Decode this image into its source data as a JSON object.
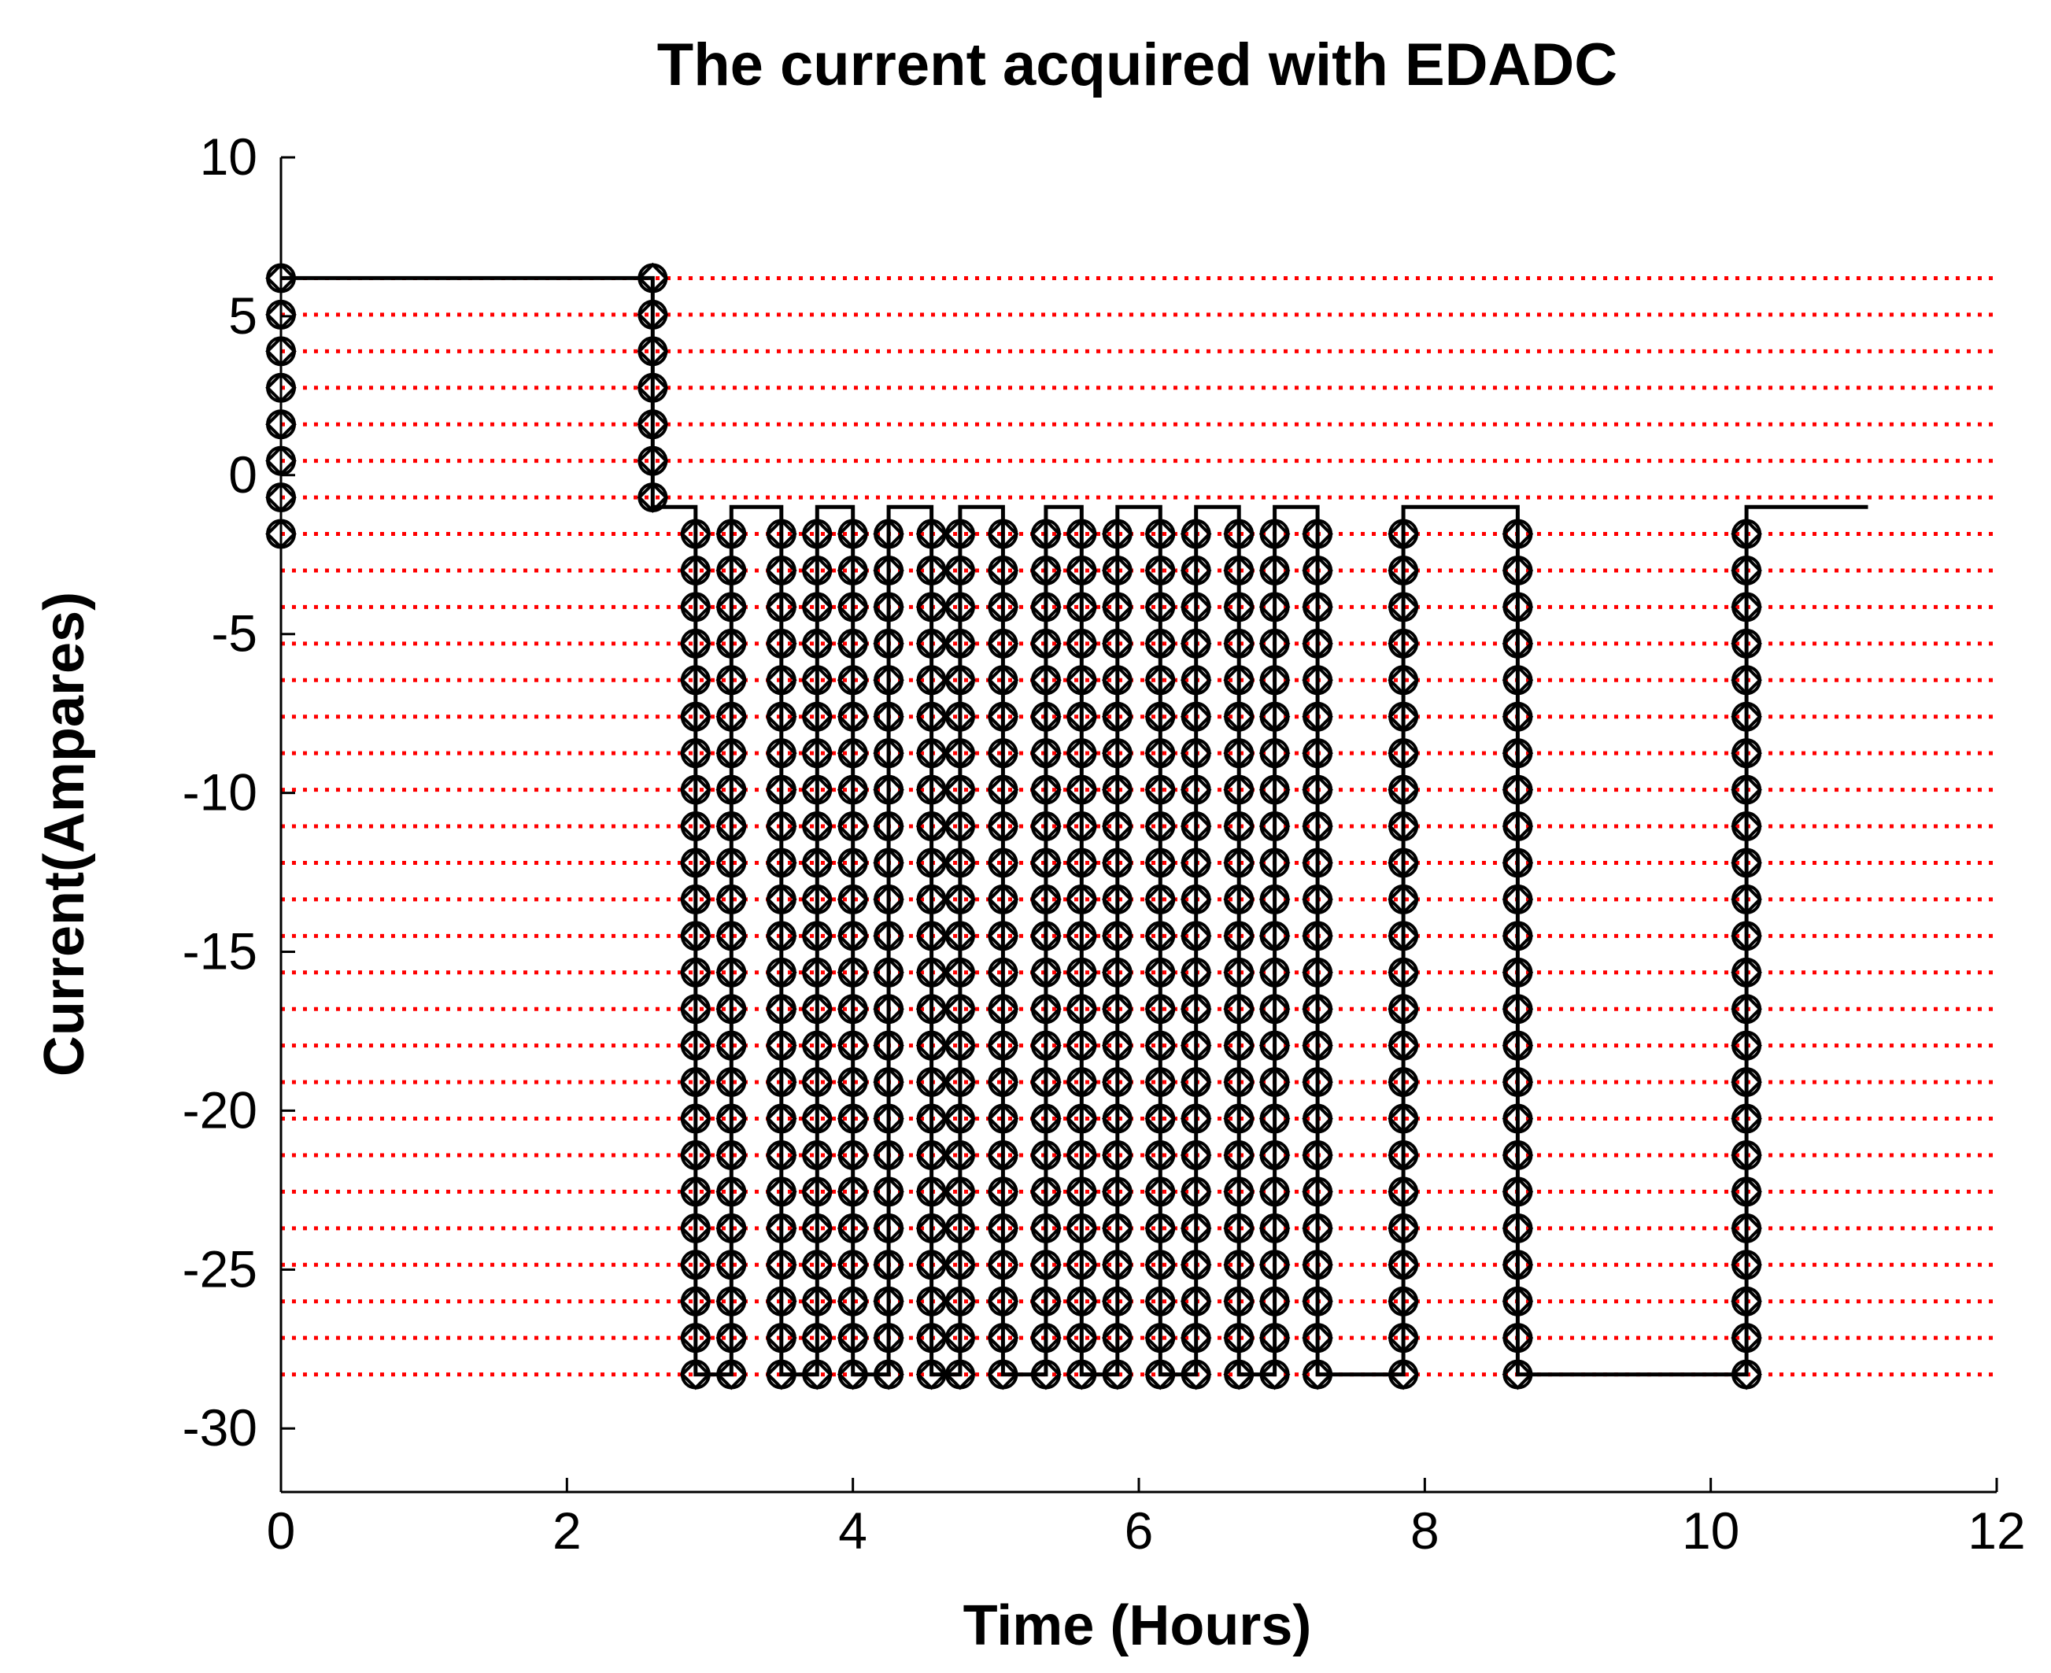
{
  "chart_data": {
    "type": "line",
    "title": "The current acquired with EDADC",
    "xlabel": "Time (Hours)",
    "ylabel": "Current(Ampares)",
    "xlim": [
      0,
      12
    ],
    "ylim": [
      -32,
      10
    ],
    "xticks": [
      0,
      2,
      4,
      6,
      8,
      10,
      12
    ],
    "yticks": [
      10,
      5,
      0,
      -5,
      -10,
      -15,
      -20,
      -25,
      -30
    ],
    "xtick_labels": [
      "0",
      "2",
      "4",
      "6",
      "8",
      "10",
      "12"
    ],
    "ytick_labels": [
      "10",
      "5",
      "0",
      "-5",
      "-10",
      "-15",
      "-20",
      "-25",
      "-30"
    ],
    "marker": "diamond-circle",
    "threshold_levels": [
      6.2,
      5.05,
      3.9,
      2.75,
      1.6,
      0.45,
      -0.7,
      -1.85,
      -3.0,
      -4.15,
      -5.3,
      -6.45,
      -7.6,
      -8.75,
      -9.9,
      -11.05,
      -12.2,
      -13.35,
      -14.5,
      -15.65,
      -16.8,
      -17.95,
      -19.1,
      -20.25,
      -21.4,
      -22.55,
      -23.7,
      -24.85,
      -26.0,
      -27.15,
      -28.3
    ],
    "series": [
      {
        "x": [
          0,
          2.6,
          2.6,
          2.9,
          2.9,
          3.15,
          3.15,
          3.5,
          3.5,
          3.75,
          3.75,
          4.0,
          4.0,
          4.25,
          4.25,
          4.55,
          4.55,
          4.75,
          4.75,
          5.05,
          5.05,
          5.35,
          5.35,
          5.6,
          5.6,
          5.85,
          5.85,
          6.15,
          6.15,
          6.4,
          6.4,
          6.7,
          6.7,
          6.95,
          6.95,
          7.25,
          7.25,
          7.85,
          7.85,
          8.65,
          8.65,
          10.25,
          10.25,
          11.1
        ],
        "y": [
          6.2,
          6.2,
          -1.0,
          -1.0,
          -28.3,
          -28.3,
          -1.0,
          -1.0,
          -28.3,
          -28.3,
          -1.0,
          -1.0,
          -28.3,
          -28.3,
          -1.0,
          -1.0,
          -28.3,
          -28.3,
          -1.0,
          -1.0,
          -28.3,
          -28.3,
          -1.0,
          -1.0,
          -28.3,
          -28.3,
          -1.0,
          -1.0,
          -28.3,
          -28.3,
          -1.0,
          -1.0,
          -28.3,
          -28.3,
          -1.0,
          -1.0,
          -28.3,
          -28.3,
          -1.0,
          -1.0,
          -28.3,
          -28.3,
          -1.0,
          -1.0
        ]
      }
    ]
  }
}
